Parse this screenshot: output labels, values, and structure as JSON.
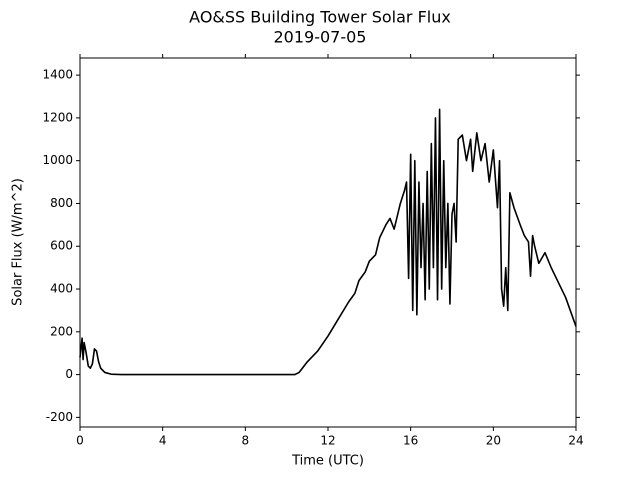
{
  "chart_data": {
    "type": "line",
    "title": "AO&SS Building Tower Solar Flux",
    "subtitle": "2019-07-05",
    "x_label": "Time (UTC)",
    "y_label": "Solar Flux (W/m^2)",
    "xlim": [
      0,
      24
    ],
    "xticks": [
      0,
      4,
      8,
      12,
      16,
      20,
      24
    ],
    "ylim": [
      -245,
      1480
    ],
    "yticks": [
      -200,
      0,
      200,
      400,
      600,
      800,
      1000,
      1200,
      1400
    ],
    "series": [
      {
        "name": "Solar Flux",
        "color": "#000000",
        "x": [
          0,
          0.1,
          0.15,
          0.2,
          0.3,
          0.4,
          0.5,
          0.6,
          0.7,
          0.8,
          0.9,
          1.0,
          1.2,
          1.5,
          2,
          4,
          8,
          10.4,
          10.6,
          11,
          11.5,
          12,
          12.5,
          13,
          13.3,
          13.5,
          13.8,
          14,
          14.3,
          14.5,
          14.8,
          15,
          15.2,
          15.5,
          15.7,
          15.8,
          15.9,
          16,
          16.1,
          16.2,
          16.3,
          16.4,
          16.5,
          16.6,
          16.7,
          16.8,
          16.9,
          17,
          17.1,
          17.2,
          17.3,
          17.4,
          17.5,
          17.6,
          17.7,
          17.8,
          17.9,
          18,
          18.1,
          18.2,
          18.3,
          18.5,
          18.7,
          18.9,
          19,
          19.2,
          19.4,
          19.6,
          19.8,
          20,
          20.2,
          20.3,
          20.4,
          20.5,
          20.6,
          20.7,
          20.8,
          21,
          21.3,
          21.5,
          21.7,
          21.8,
          21.9,
          22,
          22.2,
          22.5,
          22.8,
          23,
          23.5,
          24
        ],
        "values": [
          80,
          170,
          70,
          150,
          100,
          40,
          30,
          50,
          120,
          110,
          60,
          30,
          10,
          2,
          0,
          0,
          0,
          0,
          10,
          60,
          110,
          180,
          260,
          340,
          380,
          440,
          480,
          530,
          560,
          640,
          700,
          730,
          680,
          800,
          860,
          900,
          450,
          1030,
          300,
          1000,
          280,
          900,
          500,
          800,
          350,
          950,
          400,
          1080,
          500,
          1200,
          350,
          1240,
          400,
          1000,
          500,
          800,
          330,
          750,
          800,
          620,
          1100,
          1120,
          1000,
          1100,
          950,
          1130,
          1000,
          1080,
          900,
          1050,
          780,
          1000,
          400,
          320,
          500,
          300,
          850,
          780,
          700,
          650,
          620,
          460,
          650,
          600,
          520,
          570,
          500,
          460,
          360,
          225
        ]
      }
    ]
  }
}
